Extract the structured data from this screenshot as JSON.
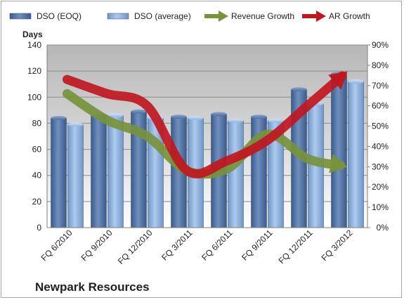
{
  "chart_data": {
    "type": "bar",
    "title": "Newpark Resources",
    "ylabel_left": "Days",
    "categories": [
      "FQ 6/2010",
      "FQ 9/2010",
      "FQ 12/2010",
      "FQ 3/2011",
      "FQ 6/2011",
      "FQ 9/2011",
      "FQ 12/2011",
      "FQ 3/2012"
    ],
    "y_left": {
      "min": 0,
      "max": 140,
      "ticks": [
        "0",
        "20",
        "40",
        "60",
        "80",
        "100",
        "120",
        "140"
      ]
    },
    "y_right": {
      "min": 0,
      "max": 0.9,
      "ticks": [
        "0%",
        "10%",
        "20%",
        "30%",
        "40%",
        "50%",
        "60%",
        "70%",
        "80%",
        "90%"
      ]
    },
    "series": [
      {
        "name": "DSO (EOQ)",
        "kind": "bar",
        "axis": "left",
        "color": "#4f6f9f",
        "values": [
          84,
          86,
          89,
          85,
          87,
          85,
          106,
          118
        ]
      },
      {
        "name": "DSO (average)",
        "kind": "bar",
        "axis": "left",
        "color": "#8db4e2",
        "values": [
          79,
          86,
          84,
          84,
          82,
          82,
          95,
          112
        ]
      },
      {
        "name": "Revenue Growth",
        "kind": "arrow-line",
        "axis": "right",
        "color": "#77933c",
        "values": [
          0.66,
          0.53,
          0.45,
          0.28,
          0.29,
          0.46,
          0.34,
          0.3
        ]
      },
      {
        "name": "AR Growth",
        "kind": "arrow-line",
        "axis": "right",
        "color": "#c0171f",
        "values": [
          0.73,
          0.66,
          0.6,
          0.28,
          0.33,
          0.43,
          0.6,
          0.77
        ]
      }
    ],
    "grid": true,
    "legend": "top"
  }
}
